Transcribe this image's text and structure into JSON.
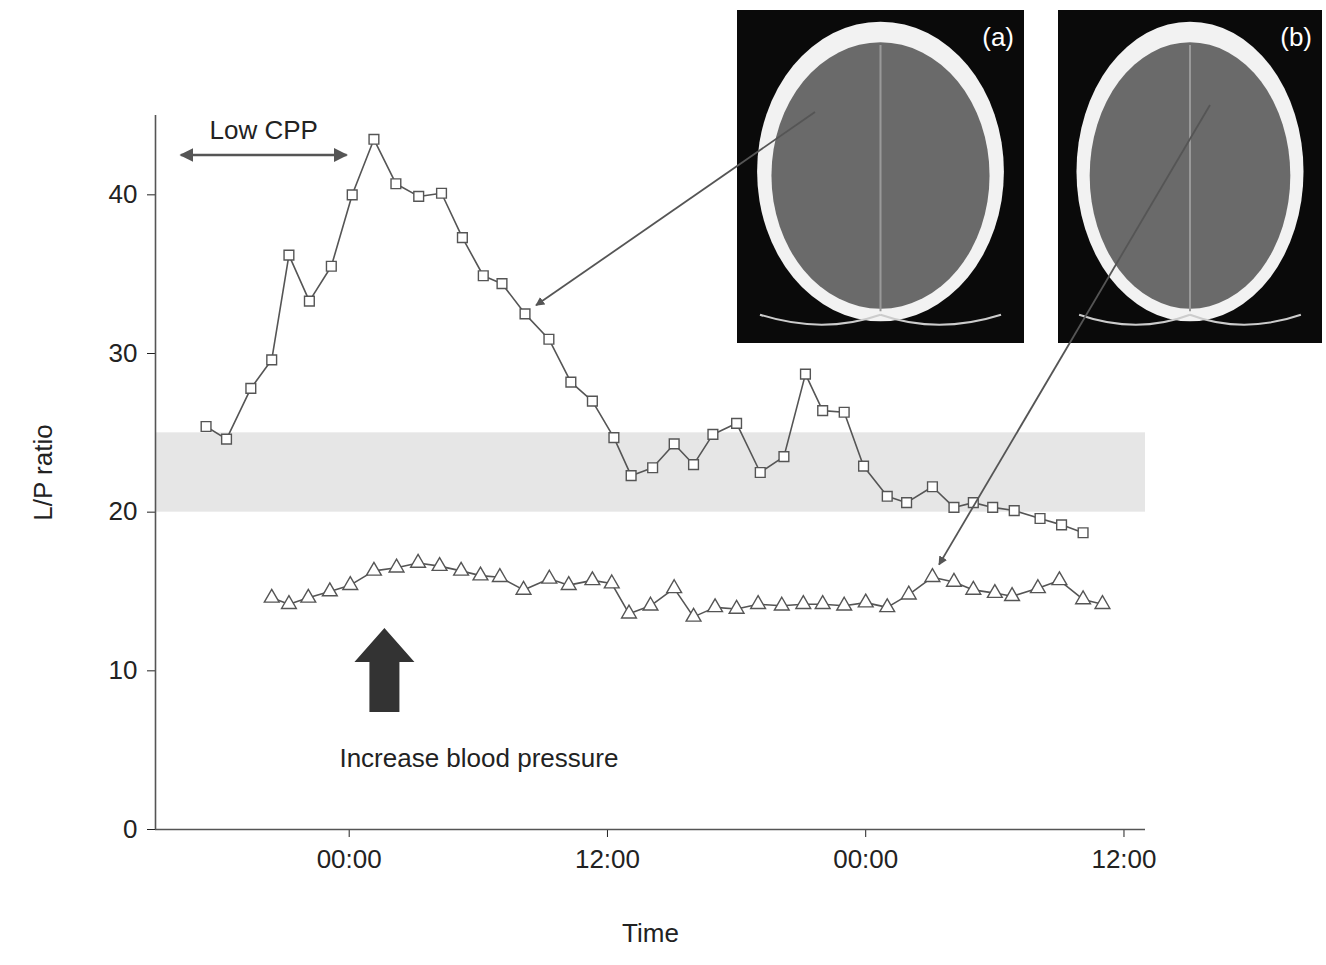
{
  "chart_data": {
    "type": "line",
    "x_label": "Time",
    "y_label": "L/P ratio",
    "xlim": [
      -9,
      37
    ],
    "xticks": [
      {
        "value": 0,
        "label": "00:00"
      },
      {
        "value": 12,
        "label": "12:00"
      },
      {
        "value": 24,
        "label": "00:00"
      },
      {
        "value": 36,
        "label": "12:00"
      }
    ],
    "ylim": [
      0,
      45
    ],
    "yticks": [
      0,
      10,
      20,
      30,
      40
    ],
    "grid": false,
    "band": {
      "y": [
        20,
        25
      ],
      "color": "#e6e6e6"
    },
    "series": [
      {
        "color": "#555555",
        "marker": "square",
        "line_style": "solid",
        "x": [
          -6.65,
          -5.7,
          -4.57,
          -3.6,
          -2.8,
          -1.85,
          -0.83,
          0.14,
          1.15,
          2.17,
          3.23,
          4.29,
          5.26,
          6.23,
          7.1,
          8.17,
          9.28,
          10.3,
          11.3,
          12.3,
          13.1,
          14.1,
          15.1,
          16.0,
          16.9,
          18.0,
          19.1,
          20.2,
          21.2,
          22.0,
          23.0,
          23.9,
          25.0,
          25.9,
          27.1,
          28.1,
          29.0,
          29.9,
          30.9,
          32.1,
          33.1,
          34.1
        ],
        "values": [
          25.4,
          24.6,
          27.8,
          29.6,
          36.2,
          33.3,
          35.5,
          40.0,
          43.5,
          40.7,
          39.9,
          40.1,
          37.3,
          34.9,
          34.4,
          32.5,
          30.9,
          28.2,
          27.0,
          24.7,
          22.3,
          22.8,
          24.3,
          23.0,
          24.9,
          25.6,
          22.5,
          23.5,
          28.7,
          26.4,
          26.3,
          22.9,
          21.0,
          20.6,
          21.6,
          20.3,
          20.6,
          20.3,
          20.1,
          19.6,
          19.2,
          18.7
        ]
      },
      {
        "color": "#555555",
        "marker": "triangle",
        "line_style": "solid",
        "x": [
          -3.6,
          -2.8,
          -1.9,
          -0.9,
          0.05,
          1.15,
          2.2,
          3.2,
          4.2,
          5.2,
          6.1,
          7.0,
          8.1,
          9.3,
          10.2,
          11.3,
          12.2,
          13.0,
          14.0,
          15.1,
          16.0,
          17.0,
          18.0,
          19.0,
          20.1,
          21.1,
          22.0,
          23.0,
          24.0,
          25.0,
          26.0,
          27.1,
          28.1,
          29.0,
          30.0,
          30.8,
          32.0,
          33.0,
          34.1,
          35.0
        ],
        "values": [
          14.6,
          14.2,
          14.6,
          15.0,
          15.4,
          16.3,
          16.5,
          16.8,
          16.6,
          16.3,
          16.0,
          15.9,
          15.1,
          15.8,
          15.4,
          15.7,
          15.5,
          13.6,
          14.1,
          15.2,
          13.4,
          14.0,
          13.9,
          14.2,
          14.1,
          14.2,
          14.2,
          14.1,
          14.3,
          14.0,
          14.8,
          15.9,
          15.6,
          15.1,
          14.9,
          14.7,
          15.2,
          15.7,
          14.5,
          14.2
        ]
      }
    ],
    "annotations": [
      {
        "text": "Low CPP",
        "x_range": [
          -7.8,
          -0.1
        ]
      },
      {
        "text": "Increase blood pressure",
        "x": 1.66
      }
    ],
    "insets": [
      {
        "label": "(a)",
        "target": {
          "x": 8.17,
          "y": 32.5
        }
      },
      {
        "label": "(b)",
        "target": {
          "x": 27.1,
          "y": 15.9
        }
      }
    ]
  }
}
